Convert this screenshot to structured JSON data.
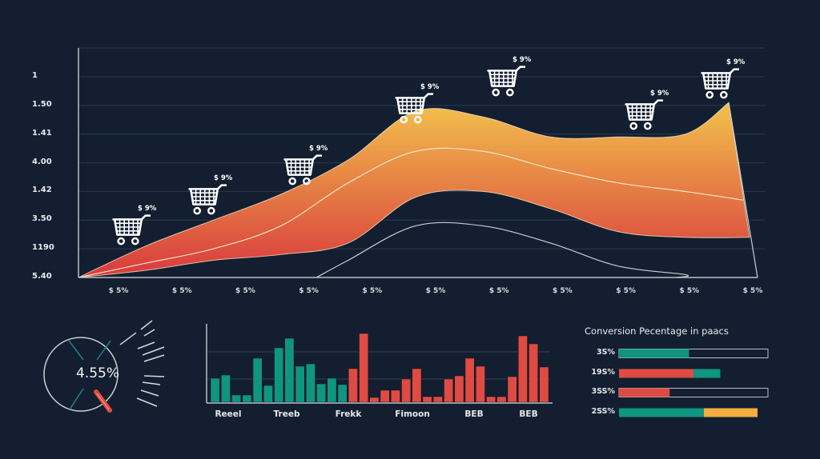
{
  "colors": {
    "background": "#131f30",
    "grid": "#2a3a50",
    "axis": "#b9bec7",
    "area_top": "#f2c14c",
    "area_bottom": "#d8393d",
    "teal": "#0f9580",
    "red": "#df4b42",
    "yellow": "#f4ae3f",
    "gauge_tick": "#1d7f92"
  },
  "chart_data": [
    {
      "type": "area",
      "title": "",
      "y_tick_labels": [
        "1",
        "1.50",
        "1.41",
        "4.00",
        "1.42",
        "3.50",
        "1190",
        "5.40"
      ],
      "x_tick_labels": [
        "$ 5%",
        "$ 5%",
        "$ 5%",
        "$ 5%",
        "$ 5%",
        "$ 5%",
        "$ 5%",
        "$ 5%",
        "$ 5%",
        "$ 5%",
        "$ 5%"
      ],
      "ylim": [
        0,
        8
      ],
      "grid": true,
      "x": [
        0,
        1,
        2,
        3,
        4,
        5,
        6,
        7,
        8,
        9,
        10
      ],
      "series": [
        {
          "name": "upper-band-top",
          "values": [
            0,
            1.1,
            2.0,
            2.9,
            4.1,
            5.8,
            5.6,
            4.9,
            4.9,
            5.0,
            6.1
          ]
        },
        {
          "name": "upper-band-mid",
          "values": [
            0,
            0.5,
            1.0,
            1.8,
            3.3,
            4.4,
            4.4,
            3.8,
            3.3,
            3.0,
            2.7
          ]
        },
        {
          "name": "lower-band-edge",
          "values": [
            0,
            0.25,
            0.6,
            0.8,
            1.2,
            2.8,
            3.0,
            2.4,
            1.6,
            1.4,
            1.4
          ]
        },
        {
          "name": "bottom-line",
          "values": [
            null,
            null,
            null,
            0,
            0.6,
            1.8,
            1.8,
            1.2,
            0.4,
            0.1,
            0
          ]
        }
      ],
      "annotations": [
        {
          "label": "$ 9%",
          "icon": "shopping-cart-icon",
          "x": 0.6
        },
        {
          "label": "$ 9%",
          "icon": "shopping-cart-icon",
          "x": 1.8
        },
        {
          "label": "$ 9%",
          "icon": "shopping-cart-icon",
          "x": 3.3
        },
        {
          "label": "$ 9%",
          "icon": "shopping-cart-icon",
          "x": 5.0
        },
        {
          "label": "$ 9%",
          "icon": "shopping-cart-icon",
          "x": 6.5
        },
        {
          "label": "$ 9%",
          "icon": "shopping-cart-icon",
          "x": 8.6
        },
        {
          "label": "$ 9%",
          "icon": "shopping-cart-icon",
          "x": 9.8
        }
      ]
    },
    {
      "type": "gauge",
      "value_label": "4.55%",
      "value": 4.55
    },
    {
      "type": "bar",
      "categories": [
        "Reeel",
        "Treeb",
        "Frekk",
        "Fimoon",
        "BEB",
        "BEB"
      ],
      "ylim": [
        0,
        100
      ],
      "grid": true,
      "values": [
        30,
        34,
        9,
        9,
        55,
        21,
        68,
        80,
        45,
        48,
        23,
        30,
        22,
        42,
        86,
        6,
        15,
        15,
        29,
        42,
        7,
        7,
        29,
        33,
        55,
        45,
        7,
        7,
        32,
        83,
        73,
        44
      ],
      "bar_colors": [
        "teal",
        "teal",
        "teal",
        "teal",
        "teal",
        "teal",
        "teal",
        "teal",
        "teal",
        "teal",
        "teal",
        "teal",
        "teal",
        "red",
        "red",
        "red",
        "red",
        "red",
        "red",
        "red",
        "red",
        "red",
        "red",
        "red",
        "red",
        "red",
        "red",
        "red",
        "red",
        "red",
        "red",
        "red"
      ]
    },
    {
      "type": "bar",
      "orientation": "horizontal",
      "title": "Conversion Pecentage in paacs",
      "rows": [
        {
          "label": "3S%",
          "segments": [
            {
              "color": "teal",
              "value": 47
            }
          ],
          "track": true
        },
        {
          "label": "19S%",
          "segments": [
            {
              "color": "red",
              "value": 50
            },
            {
              "color": "teal",
              "value": 18
            }
          ],
          "track": false
        },
        {
          "label": "3SS%",
          "segments": [
            {
              "color": "red",
              "value": 34
            }
          ],
          "track": true
        },
        {
          "label": "2SS%",
          "segments": [
            {
              "color": "teal",
              "value": 57
            },
            {
              "color": "yellow",
              "value": 36
            }
          ],
          "track": false
        }
      ]
    }
  ]
}
